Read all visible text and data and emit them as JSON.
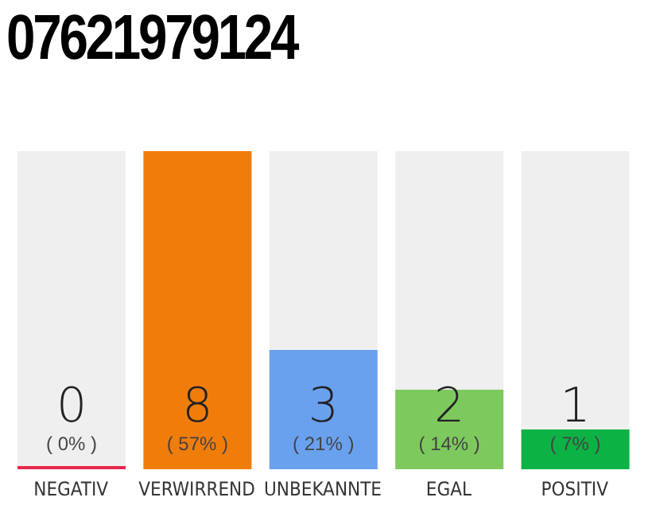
{
  "chart_data": {
    "type": "bar",
    "title": "07621979124",
    "categories": [
      "NEGATIV",
      "VERWIRREND",
      "UNBEKANNTE",
      "EGAL",
      "POSITIV"
    ],
    "values": [
      0,
      8,
      3,
      2,
      1
    ],
    "colors": [
      "#e8274b",
      "#f07d0a",
      "#6aa1ef",
      "#7dc95e",
      "#0db245"
    ],
    "value_labels": [
      "0\n( 0% )",
      "8\n( 57% )",
      "3\n( 21% )",
      "2\n( 14% )",
      "1\n( 7% )"
    ],
    "tick_labels": "x",
    "grid": false,
    "legend": false
  }
}
